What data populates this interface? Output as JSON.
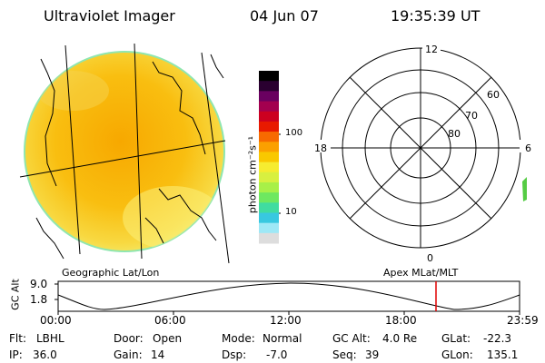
{
  "header": {
    "title": "Ultraviolet Imager",
    "date": "04 Jun 07",
    "time": "19:35:39 UT"
  },
  "colorbar": {
    "unit_label": "photon cm⁻²s⁻¹",
    "ticks": [
      "100",
      "10"
    ],
    "colors": [
      "#000000",
      "#2a0030",
      "#6a0060",
      "#a3004f",
      "#cc0020",
      "#e81a00",
      "#f76a00",
      "#fba000",
      "#f9c800",
      "#f6ec30",
      "#d8f040",
      "#a8f048",
      "#6ee860",
      "#40dca0",
      "#38c8e0",
      "#9ee8f6",
      "#dddddd"
    ]
  },
  "panels": {
    "left_caption": "Geographic Lat/Lon",
    "right_caption": "Apex MLat/MLT"
  },
  "polar": {
    "lat_labels": [
      "60",
      "70",
      "80"
    ],
    "mlt_labels": [
      "12",
      "18",
      "6",
      "0"
    ]
  },
  "altitude": {
    "axis_label": "GC Alt",
    "ymax": "9.0",
    "ymin": "1.8",
    "x_ticks": [
      "00:00",
      "06:00",
      "12:00",
      "18:00",
      "23:59"
    ]
  },
  "info": {
    "flt_label": "Flt:",
    "flt_value": "LBHL",
    "ip_label": "IP:",
    "ip_value": "36.0",
    "door_label": "Door:",
    "door_value": "Open",
    "gain_label": "Gain:",
    "gain_value": "14",
    "mode_label": "Mode:",
    "mode_value": "Normal",
    "dsp_label": "Dsp:",
    "dsp_value": "-7.0",
    "gcalt_label": "GC Alt:",
    "gcalt_value": "4.0 Re",
    "seq_label": "Seq:",
    "seq_value": "39",
    "glat_label": "GLat:",
    "glat_value": "-22.3",
    "glon_label": "GLon:",
    "glon_value": "135.1"
  }
}
